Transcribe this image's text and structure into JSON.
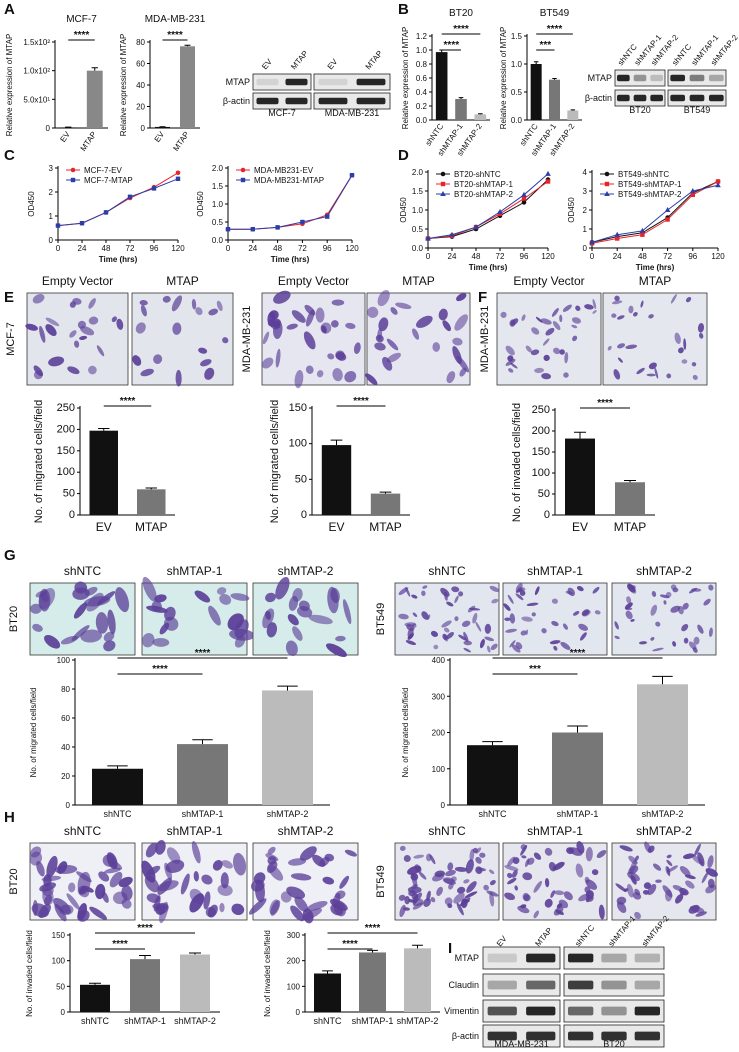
{
  "panel_labels": [
    "A",
    "B",
    "C",
    "D",
    "E",
    "F",
    "G",
    "H",
    "I"
  ],
  "chart_data": [
    {
      "type": "bar",
      "title": "MCF-7",
      "ylabel": "Relative expression of MTAP",
      "categories": [
        "EV",
        "MTAP"
      ],
      "values": [
        1,
        100
      ],
      "errors": [
        0.5,
        5
      ],
      "colors": [
        "#111111",
        "#888888"
      ],
      "ylim": [
        0,
        150
      ],
      "yticks": [
        0,
        {
          "value": 50,
          "label": "5.0x10¹"
        },
        {
          "value": 100,
          "label": "1.0x10²"
        },
        {
          "value": 150,
          "label": "1.5x10²"
        }
      ],
      "annotations": [
        "****"
      ]
    },
    {
      "type": "bar",
      "title": "MDA-MB-231",
      "ylabel": "Relative expression of MTAP",
      "categories": [
        "EV",
        "MTAP"
      ],
      "values": [
        1,
        76
      ],
      "errors": [
        0.2,
        1
      ],
      "colors": [
        "#111111",
        "#888888"
      ],
      "ylim": [
        0,
        80
      ],
      "yticks": [
        0,
        20,
        40,
        60,
        80
      ],
      "annotations": [
        "****"
      ]
    },
    {
      "type": "bar",
      "title": "BT20",
      "ylabel": "Relative expression of MTAP",
      "categories": [
        "shNTC",
        "shMTAP-1",
        "shMTAP-2"
      ],
      "values": [
        0.97,
        0.3,
        0.08
      ],
      "errors": [
        0.03,
        0.02,
        0.01
      ],
      "colors": [
        "#111111",
        "#777777",
        "#bbbbbb"
      ],
      "ylim": [
        0,
        1.2
      ],
      "yticks": [
        {
          "value": 0,
          "label": "0.0"
        },
        0.2,
        0.4,
        0.6,
        0.8,
        {
          "value": 1,
          "label": "1.0"
        },
        1.2
      ],
      "annotations": [
        "****",
        "****"
      ]
    },
    {
      "type": "bar",
      "title": "BT549",
      "ylabel": "Relative expression of MTAP",
      "categories": [
        "shNTC",
        "shMTAP-1",
        "shMTAP-2"
      ],
      "values": [
        1.0,
        0.72,
        0.17
      ],
      "errors": [
        0.04,
        0.02,
        0.01
      ],
      "colors": [
        "#111111",
        "#777777",
        "#bbbbbb"
      ],
      "ylim": [
        0,
        1.5
      ],
      "yticks": [
        {
          "value": 0,
          "label": "0.0"
        },
        0.5,
        {
          "value": 1,
          "label": "1.0"
        },
        1.5
      ],
      "annotations": [
        "***",
        "****"
      ]
    },
    {
      "type": "line",
      "ylabel": "OD450",
      "xlabel": "Time (hrs)",
      "x": [
        0,
        24,
        48,
        72,
        96,
        120
      ],
      "xlim": [
        0,
        120
      ],
      "xticks": [
        0,
        24,
        48,
        72,
        96,
        120
      ],
      "ylim": [
        0,
        3
      ],
      "yticks": [
        0,
        1,
        2,
        3
      ],
      "series": [
        {
          "name": "MCF-7-EV",
          "color": "#e8232a",
          "marker": "circle",
          "values": [
            0.6,
            0.7,
            1.15,
            1.75,
            2.2,
            2.8
          ]
        },
        {
          "name": "MCF-7-MTAP",
          "color": "#2b3fa8",
          "marker": "square",
          "values": [
            0.6,
            0.7,
            1.15,
            1.8,
            2.15,
            2.55
          ]
        }
      ]
    },
    {
      "type": "line",
      "ylabel": "OD450",
      "xlabel": "Time (hrs)",
      "x": [
        0,
        24,
        48,
        72,
        96,
        120
      ],
      "xlim": [
        0,
        120
      ],
      "xticks": [
        0,
        24,
        48,
        72,
        96,
        120
      ],
      "ylim": [
        0,
        2
      ],
      "yticks": [
        {
          "value": 0,
          "label": "0.0"
        },
        0.5,
        {
          "value": 1,
          "label": "1.0"
        },
        1.5,
        {
          "value": 2,
          "label": "2.0"
        }
      ],
      "series": [
        {
          "name": "MDA-MB231-EV",
          "color": "#e8232a",
          "marker": "circle",
          "values": [
            0.3,
            0.3,
            0.35,
            0.45,
            0.7,
            1.8
          ]
        },
        {
          "name": "MDA-MB231-MTAP",
          "color": "#2b3fa8",
          "marker": "square",
          "values": [
            0.3,
            0.3,
            0.35,
            0.5,
            0.65,
            1.8
          ]
        }
      ]
    },
    {
      "type": "line",
      "ylabel": "OD450",
      "xlabel": "Time (hrs)",
      "x": [
        0,
        24,
        48,
        72,
        96,
        120
      ],
      "xlim": [
        0,
        120
      ],
      "xticks": [
        0,
        24,
        48,
        72,
        96,
        120
      ],
      "ylim": [
        0,
        2
      ],
      "yticks": [
        {
          "value": 0,
          "label": "0.0"
        },
        0.5,
        {
          "value": 1,
          "label": "1.0"
        },
        1.5,
        {
          "value": 2,
          "label": "2.0"
        }
      ],
      "series": [
        {
          "name": "BT20-shNTC",
          "color": "#111111",
          "marker": "circle",
          "values": [
            0.25,
            0.3,
            0.5,
            0.85,
            1.2,
            1.8
          ]
        },
        {
          "name": "BT20-shMTAP-1",
          "color": "#e8232a",
          "marker": "square",
          "values": [
            0.25,
            0.32,
            0.55,
            0.9,
            1.3,
            1.75
          ]
        },
        {
          "name": "BT20-shMTAP-2",
          "color": "#2b3fa8",
          "marker": "triangle",
          "values": [
            0.25,
            0.35,
            0.55,
            0.95,
            1.4,
            1.95
          ]
        }
      ]
    },
    {
      "type": "line",
      "ylabel": "OD450",
      "xlabel": "Time (hrs)",
      "x": [
        0,
        24,
        48,
        72,
        96,
        120
      ],
      "xlim": [
        0,
        120
      ],
      "xticks": [
        0,
        24,
        48,
        72,
        96,
        120
      ],
      "ylim": [
        0,
        4
      ],
      "yticks": [
        0,
        1,
        2,
        3,
        4
      ],
      "series": [
        {
          "name": "BT549-shNTC",
          "color": "#111111",
          "marker": "circle",
          "values": [
            0.3,
            0.6,
            0.8,
            1.6,
            2.9,
            3.5
          ]
        },
        {
          "name": "BT549-shMTAP-1",
          "color": "#e8232a",
          "marker": "square",
          "values": [
            0.25,
            0.5,
            0.7,
            1.5,
            2.8,
            3.5
          ]
        },
        {
          "name": "BT549-shMTAP-2",
          "color": "#2b3fa8",
          "marker": "triangle",
          "values": [
            0.3,
            0.7,
            0.9,
            2.0,
            3.0,
            3.3
          ]
        }
      ]
    },
    {
      "type": "bar",
      "ylabel": "No. of migrated cells/field",
      "categories": [
        "EV",
        "MTAP"
      ],
      "values": [
        197,
        60
      ],
      "errors": [
        5,
        3
      ],
      "colors": [
        "#111111",
        "#777777"
      ],
      "ylim": [
        0,
        250
      ],
      "yticks": [
        0,
        50,
        100,
        150,
        200,
        250
      ],
      "annotations": [
        "****"
      ]
    },
    {
      "type": "bar",
      "ylabel": "No. of migrated cells/field",
      "categories": [
        "EV",
        "MTAP"
      ],
      "values": [
        98,
        30
      ],
      "errors": [
        7,
        2
      ],
      "colors": [
        "#111111",
        "#777777"
      ],
      "ylim": [
        0,
        150
      ],
      "yticks": [
        0,
        50,
        100,
        150
      ],
      "annotations": [
        "****"
      ]
    },
    {
      "type": "bar",
      "ylabel": "No. of invaded cells/field",
      "categories": [
        "EV",
        "MTAP"
      ],
      "values": [
        182,
        78
      ],
      "errors": [
        15,
        4
      ],
      "colors": [
        "#111111",
        "#777777"
      ],
      "ylim": [
        0,
        250
      ],
      "yticks": [
        0,
        50,
        100,
        150,
        200,
        250
      ],
      "annotations": [
        "****"
      ]
    },
    {
      "type": "bar",
      "ylabel": "No. of migrated cells/field",
      "categories": [
        "shNTC",
        "shMTAP-1",
        "shMTAP-2"
      ],
      "values": [
        25,
        42,
        79
      ],
      "errors": [
        2,
        3,
        3
      ],
      "colors": [
        "#111111",
        "#777777",
        "#bbbbbb"
      ],
      "ylim": [
        0,
        100
      ],
      "yticks": [
        0,
        20,
        40,
        60,
        80,
        100
      ],
      "annotations": [
        "****",
        "****"
      ]
    },
    {
      "type": "bar",
      "ylabel": "No. of migrated cells/field",
      "categories": [
        "shNTC",
        "shMTAP-1",
        "shMTAP-2"
      ],
      "values": [
        165,
        200,
        333
      ],
      "errors": [
        10,
        18,
        22
      ],
      "colors": [
        "#111111",
        "#777777",
        "#bbbbbb"
      ],
      "ylim": [
        0,
        400
      ],
      "yticks": [
        0,
        100,
        200,
        300,
        400
      ],
      "annotations": [
        "***",
        "****"
      ]
    },
    {
      "type": "bar",
      "ylabel": "No. of invaded cells/field",
      "categories": [
        "shNTC",
        "shMTAP-1",
        "shMTAP-2"
      ],
      "values": [
        53,
        103,
        112
      ],
      "errors": [
        3,
        7,
        3
      ],
      "colors": [
        "#111111",
        "#777777",
        "#bbbbbb"
      ],
      "ylim": [
        0,
        150
      ],
      "yticks": [
        0,
        50,
        100,
        150
      ],
      "annotations": [
        "****",
        "****"
      ]
    },
    {
      "type": "bar",
      "ylabel": "No. of invaded cells/field",
      "categories": [
        "shNTC",
        "shMTAP-1",
        "shMTAP-2"
      ],
      "values": [
        150,
        232,
        248
      ],
      "errors": [
        10,
        8,
        12
      ],
      "colors": [
        "#111111",
        "#777777",
        "#bbbbbb"
      ],
      "ylim": [
        0,
        300
      ],
      "yticks": [
        0,
        100,
        200,
        300
      ],
      "annotations": [
        "****",
        "****"
      ]
    }
  ],
  "blots": [
    {
      "lanes": [
        "EV",
        "MTAP",
        "EV",
        "MTAP"
      ],
      "rows": [
        "MTAP",
        "β-actin"
      ],
      "groups": [
        "MCF-7",
        "MDA-MB-231"
      ]
    },
    {
      "lanes": [
        "shNTC",
        "shMTAP-1",
        "shMTAP-2",
        "shNTC",
        "shMTAP-1",
        "shMTAP-2"
      ],
      "rows": [
        "MTAP",
        "β-actin"
      ],
      "groups": [
        "BT20",
        "BT549"
      ]
    },
    {
      "lanes": [
        "EV",
        "MTAP",
        "shNTC",
        "shMTAP-1",
        "shMTAP-2"
      ],
      "rows": [
        "MTAP",
        "Claudin",
        "Vimentin",
        "β-actin"
      ],
      "groups": [
        "MDA-MB-231",
        "BT20"
      ]
    }
  ],
  "micrographs": [
    {
      "row_label": "MCF-7",
      "columns": [
        "Empty Vector",
        "MTAP"
      ]
    },
    {
      "row_label": "MDA-MB-231",
      "columns": [
        "Empty Vector",
        "MTAP"
      ]
    },
    {
      "row_label": "MDA-MB-231",
      "columns": [
        "Empty Vector",
        "MTAP"
      ]
    },
    {
      "row_label": "BT20",
      "columns": [
        "shNTC",
        "shMTAP-1",
        "shMTAP-2"
      ]
    },
    {
      "row_label": "BT549",
      "columns": [
        "shNTC",
        "shMTAP-1",
        "shMTAP-2"
      ]
    },
    {
      "row_label": "BT20",
      "columns": [
        "shNTC",
        "shMTAP-1",
        "shMTAP-2"
      ]
    },
    {
      "row_label": "BT549",
      "columns": [
        "shNTC",
        "shMTAP-1",
        "shMTAP-2"
      ]
    }
  ]
}
